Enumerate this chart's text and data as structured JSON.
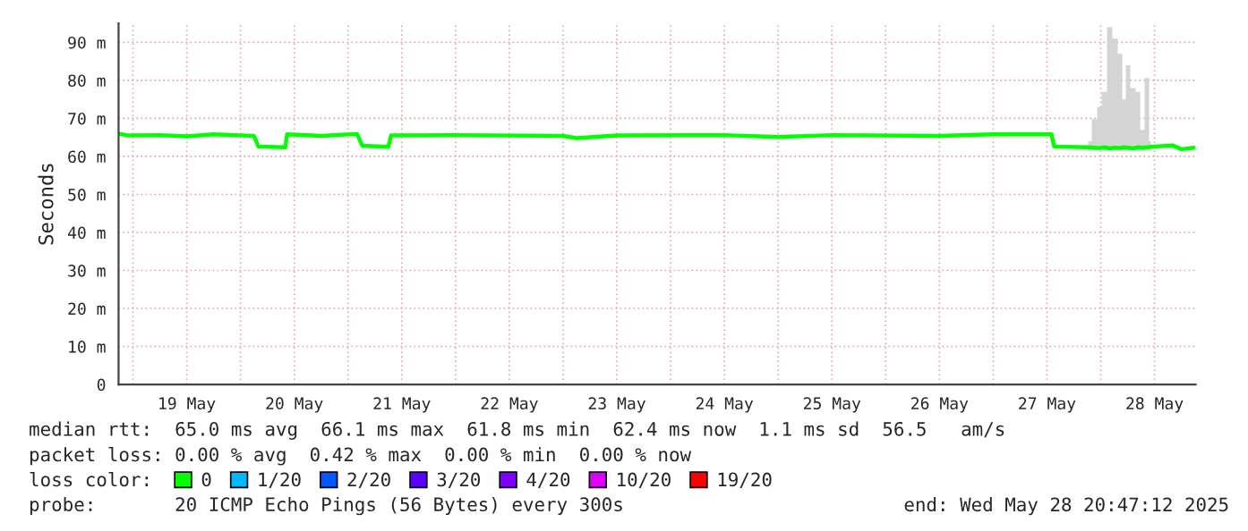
{
  "chart_data": {
    "type": "line",
    "ylabel": "Seconds",
    "x": [
      "2025-05-18T20:47",
      "2025-05-18T22:48",
      "2025-05-19T06:00",
      "2025-05-19T12:00",
      "2025-05-19T18:00",
      "2025-05-20T03:00",
      "2025-05-20T04:00",
      "2025-05-20T10:00",
      "2025-05-20T10:24",
      "2025-05-20T18:00",
      "2025-05-21T02:00",
      "2025-05-21T03:12",
      "2025-05-21T09:00",
      "2025-05-21T09:36",
      "2025-05-22T00:00",
      "2025-05-23T00:00",
      "2025-05-23T03:00",
      "2025-05-23T12:00",
      "2025-05-24T12:00",
      "2025-05-25T00:00",
      "2025-05-25T12:00",
      "2025-05-26T12:00",
      "2025-05-27T00:00",
      "2025-05-27T13:00",
      "2025-05-27T13:36",
      "2025-05-27T21:12",
      "2025-05-27T22:48",
      "2025-05-27T23:36",
      "2025-05-28T00:48",
      "2025-05-28T02:00",
      "2025-05-28T03:12",
      "2025-05-28T04:24",
      "2025-05-28T05:12",
      "2025-05-28T06:00",
      "2025-05-28T07:12",
      "2025-05-28T08:24",
      "2025-05-28T09:12",
      "2025-05-28T10:24",
      "2025-05-28T11:12",
      "2025-05-28T16:00",
      "2025-05-28T18:00",
      "2025-05-28T20:47"
    ],
    "series": [
      {
        "name": "0",
        "color": "#00ff00",
        "values": [
          66.0,
          65.5,
          65.6,
          65.3,
          65.8,
          65.4,
          62.6,
          62.4,
          65.8,
          65.4,
          65.9,
          62.8,
          62.5,
          65.5,
          65.6,
          65.4,
          64.8,
          65.5,
          65.6,
          65.1,
          65.6,
          65.4,
          65.8,
          65.8,
          62.6,
          62.4,
          62.3,
          62.2,
          62.4,
          62.1,
          62.3,
          62.2,
          62.4,
          62.3,
          62.1,
          62.4,
          62.3,
          62.4,
          62.5,
          62.9,
          61.9,
          62.3
        ],
        "lower": [
          null,
          null,
          null,
          null,
          null,
          null,
          null,
          null,
          null,
          null,
          null,
          null,
          null,
          null,
          null,
          null,
          null,
          null,
          null,
          null,
          null,
          null,
          null,
          null,
          null,
          61.5,
          61.5,
          61.5,
          61.5,
          61.5,
          61.5,
          61.5,
          61.5,
          61.5,
          61.5,
          61.5,
          61.5,
          61.5,
          61.5,
          null,
          null,
          null
        ],
        "upper": [
          null,
          null,
          null,
          null,
          null,
          null,
          null,
          null,
          null,
          null,
          null,
          null,
          null,
          null,
          null,
          null,
          null,
          null,
          null,
          null,
          null,
          null,
          null,
          null,
          null,
          64.0,
          69.8,
          73.0,
          77.0,
          94.0,
          91.0,
          87.0,
          75.0,
          84.0,
          78.0,
          77.0,
          67.0,
          80.6,
          64.0,
          null,
          null,
          null
        ]
      },
      {
        "name": "1/20",
        "color": "#00b8ff",
        "values": [
          null,
          null,
          null,
          null,
          null,
          null,
          null,
          null,
          null,
          null,
          null,
          null,
          null,
          null,
          null,
          null,
          null,
          null,
          null,
          null,
          null,
          null,
          null,
          null,
          null,
          null,
          null,
          null,
          null,
          null,
          null,
          null,
          null,
          null,
          null,
          null,
          null,
          null,
          null,
          null,
          null,
          null
        ]
      },
      {
        "name": "2/20",
        "color": "#0059ff",
        "values": [
          null,
          null,
          null,
          null,
          null,
          null,
          null,
          null,
          null,
          null,
          null,
          null,
          null,
          null,
          null,
          null,
          null,
          null,
          null,
          null,
          null,
          null,
          null,
          null,
          null,
          null,
          null,
          null,
          null,
          null,
          null,
          null,
          null,
          null,
          null,
          null,
          null,
          null,
          null,
          null,
          null,
          null
        ]
      },
      {
        "name": "3/20",
        "color": "#5e00ff",
        "values": [
          null,
          null,
          null,
          null,
          null,
          null,
          null,
          null,
          null,
          null,
          null,
          null,
          null,
          null,
          null,
          null,
          null,
          null,
          null,
          null,
          null,
          null,
          null,
          null,
          null,
          null,
          null,
          null,
          null,
          null,
          null,
          null,
          null,
          null,
          null,
          null,
          null,
          null,
          null,
          null,
          null,
          null
        ]
      },
      {
        "name": "4/20",
        "color": "#7e00ff",
        "values": [
          null,
          null,
          null,
          null,
          null,
          null,
          null,
          null,
          null,
          null,
          null,
          null,
          null,
          null,
          null,
          null,
          null,
          null,
          null,
          null,
          null,
          null,
          null,
          null,
          null,
          null,
          null,
          null,
          null,
          null,
          null,
          null,
          null,
          null,
          null,
          null,
          null,
          null,
          null,
          null,
          null,
          null
        ]
      },
      {
        "name": "10/20",
        "color": "#dd00ff",
        "values": [
          null,
          null,
          null,
          null,
          null,
          null,
          null,
          null,
          null,
          null,
          null,
          null,
          null,
          null,
          null,
          null,
          null,
          null,
          null,
          null,
          null,
          null,
          null,
          null,
          null,
          null,
          null,
          null,
          null,
          null,
          null,
          null,
          null,
          null,
          null,
          null,
          null,
          null,
          null,
          null,
          null,
          null
        ]
      },
      {
        "name": "19/20",
        "color": "#ff0000",
        "values": [
          null,
          null,
          null,
          null,
          null,
          null,
          null,
          null,
          null,
          null,
          null,
          null,
          null,
          null,
          null,
          null,
          null,
          null,
          null,
          null,
          null,
          null,
          null,
          null,
          null,
          null,
          null,
          null,
          null,
          null,
          null,
          null,
          null,
          null,
          null,
          null,
          null,
          null,
          null,
          null,
          null,
          null
        ]
      }
    ],
    "legend_title": "loss color:",
    "legend": "bottom",
    "grid": true,
    "xlim": [
      "2025-05-18T20:47",
      "2025-05-28T21:10"
    ],
    "xticks": [
      {
        "value": "2025-05-19T00:00",
        "label": null
      },
      {
        "value": "2025-05-19T12:00",
        "label": "19 May"
      },
      {
        "value": "2025-05-20T00:00",
        "label": null
      },
      {
        "value": "2025-05-20T12:00",
        "label": "20 May"
      },
      {
        "value": "2025-05-21T00:00",
        "label": null
      },
      {
        "value": "2025-05-21T12:00",
        "label": "21 May"
      },
      {
        "value": "2025-05-22T00:00",
        "label": null
      },
      {
        "value": "2025-05-22T12:00",
        "label": "22 May"
      },
      {
        "value": "2025-05-23T00:00",
        "label": null
      },
      {
        "value": "2025-05-23T12:00",
        "label": "23 May"
      },
      {
        "value": "2025-05-24T00:00",
        "label": null
      },
      {
        "value": "2025-05-24T12:00",
        "label": "24 May"
      },
      {
        "value": "2025-05-25T00:00",
        "label": null
      },
      {
        "value": "2025-05-25T12:00",
        "label": "25 May"
      },
      {
        "value": "2025-05-26T00:00",
        "label": null
      },
      {
        "value": "2025-05-26T12:00",
        "label": "26 May"
      },
      {
        "value": "2025-05-27T00:00",
        "label": null
      },
      {
        "value": "2025-05-27T12:00",
        "label": "27 May"
      },
      {
        "value": "2025-05-28T00:00",
        "label": null
      },
      {
        "value": "2025-05-28T12:00",
        "label": "28 May"
      }
    ],
    "ylim": [
      0,
      95
    ],
    "yticks": [
      0,
      {
        "value": 10,
        "label": "10 m"
      },
      {
        "value": 20,
        "label": "20 m"
      },
      {
        "value": 30,
        "label": "30 m"
      },
      {
        "value": 40,
        "label": "40 m"
      },
      {
        "value": 50,
        "label": "50 m"
      },
      {
        "value": 60,
        "label": "60 m"
      },
      {
        "value": 70,
        "label": "70 m"
      },
      {
        "value": 80,
        "label": "80 m"
      },
      {
        "value": 90,
        "label": "90 m"
      }
    ],
    "annotations": [
      "median rtt:  65.0 ms avg  66.1 ms max  61.8 ms min  62.4 ms now  1.1 ms sd  56.5   am/s",
      "packet loss: 0.00 % avg  0.42 % max  0.00 % min  0.00 % now",
      "probe:       20 ICMP Echo Pings (56 Bytes) every 300s",
      "end: Wed May 28 20:47:12 2025"
    ]
  }
}
